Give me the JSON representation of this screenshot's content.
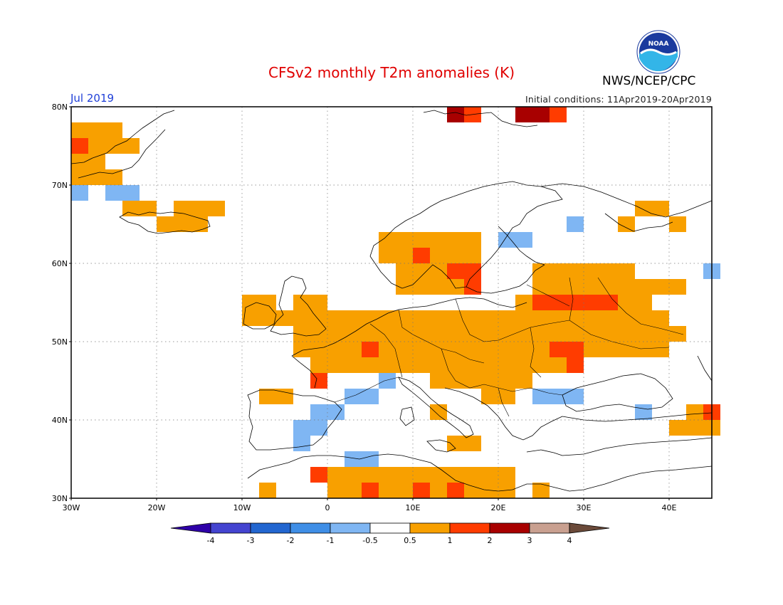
{
  "header": {
    "title": "CFSv2 monthly T2m anomalies (K)",
    "month": "Jul 2019",
    "initial_conditions": "Initial conditions: 11Apr2019-20Apr2019",
    "agency": "NWS/NCEP/CPC",
    "logo_text": "NOAA"
  },
  "map": {
    "lat_labels": [
      "80N",
      "70N",
      "60N",
      "50N",
      "40N",
      "30N"
    ],
    "lon_labels": [
      "30W",
      "20W",
      "10W",
      "0",
      "10E",
      "20E",
      "30E",
      "40E"
    ],
    "lon_range": [
      -30,
      45
    ],
    "lat_range": [
      30,
      80
    ],
    "anomaly_cells": {
      "cell_size_deg": 2,
      "levels": {
        "0.5-1": [
          [
            -30,
            76
          ],
          [
            -28,
            76
          ],
          [
            -26,
            76
          ],
          [
            -30,
            74
          ],
          [
            -28,
            74
          ],
          [
            -26,
            74
          ],
          [
            -24,
            74
          ],
          [
            -30,
            72
          ],
          [
            -28,
            72
          ],
          [
            -30,
            70
          ],
          [
            -28,
            70
          ],
          [
            -26,
            70
          ],
          [
            -24,
            66
          ],
          [
            -22,
            66
          ],
          [
            -18,
            66
          ],
          [
            -16,
            66
          ],
          [
            -14,
            66
          ],
          [
            -20,
            64
          ],
          [
            -18,
            64
          ],
          [
            -16,
            64
          ],
          [
            6,
            62
          ],
          [
            8,
            62
          ],
          [
            10,
            62
          ],
          [
            12,
            62
          ],
          [
            14,
            62
          ],
          [
            16,
            62
          ],
          [
            6,
            60
          ],
          [
            8,
            60
          ],
          [
            10,
            60
          ],
          [
            12,
            60
          ],
          [
            14,
            60
          ],
          [
            16,
            60
          ],
          [
            8,
            58
          ],
          [
            10,
            58
          ],
          [
            12,
            58
          ],
          [
            14,
            58
          ],
          [
            16,
            58
          ],
          [
            8,
            56
          ],
          [
            10,
            56
          ],
          [
            12,
            56
          ],
          [
            14,
            56
          ],
          [
            -10,
            54
          ],
          [
            -8,
            54
          ],
          [
            -4,
            54
          ],
          [
            -2,
            54
          ],
          [
            -10,
            52
          ],
          [
            -8,
            52
          ],
          [
            -6,
            52
          ],
          [
            -4,
            52
          ],
          [
            -2,
            52
          ],
          [
            0,
            52
          ],
          [
            2,
            52
          ],
          [
            -4,
            50
          ],
          [
            -2,
            50
          ],
          [
            0,
            50
          ],
          [
            2,
            50
          ],
          [
            4,
            52
          ],
          [
            6,
            52
          ],
          [
            8,
            52
          ],
          [
            10,
            52
          ],
          [
            12,
            52
          ],
          [
            14,
            52
          ],
          [
            16,
            52
          ],
          [
            18,
            52
          ],
          [
            20,
            52
          ],
          [
            22,
            52
          ],
          [
            24,
            52
          ],
          [
            26,
            52
          ],
          [
            28,
            52
          ],
          [
            30,
            52
          ],
          [
            32,
            52
          ],
          [
            34,
            52
          ],
          [
            36,
            52
          ],
          [
            38,
            52
          ],
          [
            4,
            50
          ],
          [
            6,
            50
          ],
          [
            8,
            50
          ],
          [
            10,
            50
          ],
          [
            12,
            50
          ],
          [
            14,
            50
          ],
          [
            16,
            50
          ],
          [
            18,
            50
          ],
          [
            20,
            50
          ],
          [
            22,
            50
          ],
          [
            24,
            50
          ],
          [
            26,
            50
          ],
          [
            28,
            50
          ],
          [
            30,
            50
          ],
          [
            32,
            50
          ],
          [
            34,
            50
          ],
          [
            36,
            50
          ],
          [
            38,
            50
          ],
          [
            40,
            50
          ],
          [
            -4,
            48
          ],
          [
            -2,
            48
          ],
          [
            0,
            48
          ],
          [
            2,
            48
          ],
          [
            4,
            48
          ],
          [
            6,
            48
          ],
          [
            8,
            48
          ],
          [
            10,
            48
          ],
          [
            12,
            48
          ],
          [
            14,
            48
          ],
          [
            16,
            48
          ],
          [
            18,
            48
          ],
          [
            20,
            48
          ],
          [
            22,
            48
          ],
          [
            24,
            48
          ],
          [
            26,
            48
          ],
          [
            28,
            48
          ],
          [
            30,
            48
          ],
          [
            32,
            48
          ],
          [
            34,
            48
          ],
          [
            36,
            48
          ],
          [
            38,
            48
          ],
          [
            -2,
            46
          ],
          [
            0,
            46
          ],
          [
            2,
            46
          ],
          [
            4,
            46
          ],
          [
            6,
            46
          ],
          [
            8,
            46
          ],
          [
            10,
            46
          ],
          [
            12,
            46
          ],
          [
            14,
            46
          ],
          [
            16,
            46
          ],
          [
            18,
            46
          ],
          [
            20,
            46
          ],
          [
            22,
            46
          ],
          [
            24,
            46
          ],
          [
            26,
            46
          ],
          [
            28,
            46
          ],
          [
            12,
            44
          ],
          [
            14,
            44
          ],
          [
            16,
            44
          ],
          [
            18,
            44
          ],
          [
            20,
            44
          ],
          [
            22,
            44
          ],
          [
            24,
            58
          ],
          [
            26,
            58
          ],
          [
            28,
            58
          ],
          [
            30,
            58
          ],
          [
            32,
            58
          ],
          [
            34,
            58
          ],
          [
            24,
            56
          ],
          [
            26,
            56
          ],
          [
            28,
            56
          ],
          [
            30,
            56
          ],
          [
            32,
            56
          ],
          [
            34,
            56
          ],
          [
            36,
            56
          ],
          [
            38,
            56
          ],
          [
            40,
            56
          ],
          [
            22,
            54
          ],
          [
            24,
            54
          ],
          [
            26,
            54
          ],
          [
            28,
            54
          ],
          [
            30,
            54
          ],
          [
            32,
            54
          ],
          [
            34,
            54
          ],
          [
            36,
            54
          ],
          [
            36,
            66
          ],
          [
            38,
            66
          ],
          [
            34,
            64
          ],
          [
            40,
            64
          ],
          [
            -8,
            42
          ],
          [
            -6,
            42
          ],
          [
            18,
            42
          ],
          [
            20,
            42
          ],
          [
            12,
            40
          ],
          [
            42,
            40
          ],
          [
            44,
            40
          ],
          [
            40,
            38
          ],
          [
            42,
            38
          ],
          [
            44,
            38
          ],
          [
            14,
            36
          ],
          [
            16,
            36
          ],
          [
            -2,
            32
          ],
          [
            0,
            32
          ],
          [
            2,
            32
          ],
          [
            4,
            32
          ],
          [
            6,
            32
          ],
          [
            8,
            32
          ],
          [
            10,
            32
          ],
          [
            12,
            32
          ],
          [
            14,
            32
          ],
          [
            16,
            32
          ],
          [
            18,
            32
          ],
          [
            20,
            32
          ],
          [
            0,
            30
          ],
          [
            2,
            30
          ],
          [
            4,
            30
          ],
          [
            6,
            30
          ],
          [
            8,
            30
          ],
          [
            10,
            30
          ],
          [
            12,
            30
          ],
          [
            14,
            30
          ],
          [
            16,
            30
          ],
          [
            18,
            30
          ],
          [
            20,
            30
          ],
          [
            24,
            30
          ],
          [
            -8,
            30
          ]
        ],
        "1-2": [
          [
            -30,
            74
          ],
          [
            10,
            60
          ],
          [
            14,
            58
          ],
          [
            16,
            58
          ],
          [
            16,
            56
          ],
          [
            24,
            54
          ],
          [
            26,
            54
          ],
          [
            28,
            54
          ],
          [
            30,
            54
          ],
          [
            32,
            54
          ],
          [
            26,
            48
          ],
          [
            28,
            48
          ],
          [
            4,
            48
          ],
          [
            -2,
            44
          ],
          [
            28,
            46
          ],
          [
            10,
            30
          ],
          [
            14,
            30
          ],
          [
            4,
            30
          ],
          [
            -2,
            32
          ],
          [
            44,
            40
          ],
          [
            16,
            78
          ],
          [
            14,
            78
          ],
          [
            26,
            78
          ]
        ],
        "2-3": [
          [
            24,
            78
          ],
          [
            22,
            78
          ],
          [
            14,
            78
          ]
        ],
        "-0.5--1": [
          [
            -30,
            68
          ],
          [
            -26,
            68
          ],
          [
            -24,
            68
          ],
          [
            20,
            62
          ],
          [
            22,
            62
          ],
          [
            28,
            64
          ],
          [
            -4,
            38
          ],
          [
            -2,
            38
          ],
          [
            -2,
            40
          ],
          [
            0,
            40
          ],
          [
            -4,
            36
          ],
          [
            2,
            42
          ],
          [
            4,
            42
          ],
          [
            6,
            44
          ],
          [
            24,
            42
          ],
          [
            26,
            42
          ],
          [
            28,
            42
          ],
          [
            2,
            34
          ],
          [
            4,
            34
          ],
          [
            36,
            40
          ],
          [
            44,
            58
          ]
        ]
      }
    }
  },
  "colorbar": {
    "ticks": [
      "-4",
      "-3",
      "-2",
      "-1",
      "-0.5",
      "0.5",
      "1",
      "2",
      "3",
      "4"
    ],
    "colors": [
      "#2e00a8",
      "#4444d0",
      "#2266d0",
      "#3f8ee6",
      "#7fb6f3",
      "#ffffff",
      "#f8a000",
      "#ff3c00",
      "#a80000",
      "#c9a090",
      "#6b4a3a"
    ]
  }
}
